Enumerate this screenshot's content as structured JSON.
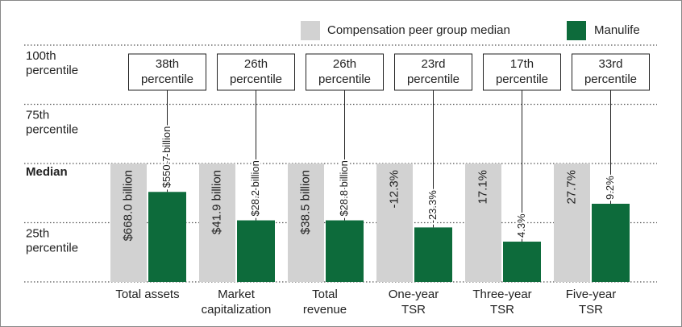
{
  "chart_data": {
    "type": "bar",
    "categories": [
      [
        "Total assets"
      ],
      [
        "Market",
        "capitalization"
      ],
      [
        "Total",
        "revenue"
      ],
      [
        "One-year",
        "TSR"
      ],
      [
        "Three-year",
        "TSR"
      ],
      [
        "Five-year",
        "TSR"
      ]
    ],
    "ylim": [
      0,
      100
    ],
    "yticks": [
      {
        "value": 25,
        "label": [
          "25th",
          "percentile"
        ]
      },
      {
        "value": 50,
        "label": [
          "Median"
        ]
      },
      {
        "value": 75,
        "label": [
          "75th",
          "percentile"
        ]
      },
      {
        "value": 100,
        "label": [
          "100th",
          "percentile"
        ]
      }
    ],
    "legend": "top-right",
    "series": [
      {
        "name": "Compensation peer group median",
        "color": "#d2d2d2",
        "values": [
          50,
          50,
          50,
          50,
          50,
          50
        ],
        "metric_labels": [
          "$668.0 billion",
          "$41.9 billion",
          "$38.5 billion",
          "-12.3%",
          "17.1%",
          "27.7%"
        ]
      },
      {
        "name": "Manulife",
        "color": "#0d6b3b",
        "values": [
          38,
          26,
          26,
          23,
          17,
          33
        ],
        "value_labels": [
          [
            "38th",
            "percentile"
          ],
          [
            "26th",
            "percentile"
          ],
          [
            "26th",
            "percentile"
          ],
          [
            "23rd",
            "percentile"
          ],
          [
            "17th",
            "percentile"
          ],
          [
            "33rd",
            "percentile"
          ]
        ],
        "metric_labels": [
          "$550.7 billion",
          "$28.2 billion",
          "$28.8 billion",
          "-23.3%",
          "4.3%",
          "9.2%"
        ]
      }
    ]
  }
}
